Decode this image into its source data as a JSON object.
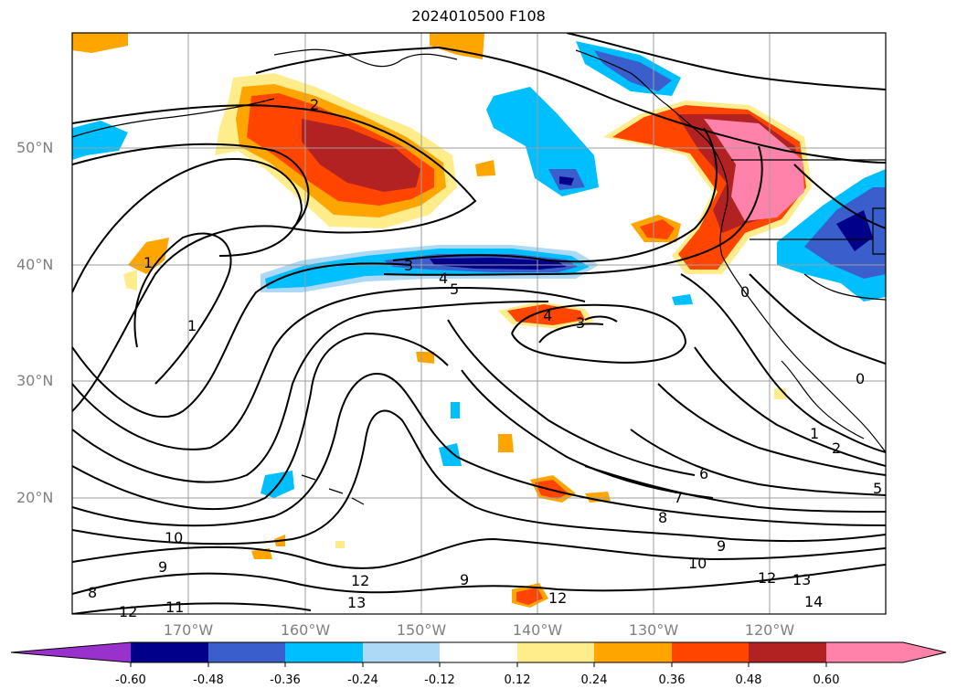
{
  "title": "2024010500 F108",
  "lat_labels": [
    "50°N",
    "40°N",
    "30°N",
    "20°N"
  ],
  "lon_labels": [
    "170°W",
    "160°W",
    "150°W",
    "140°W",
    "130°W",
    "120°W"
  ],
  "contour_labels": [
    "2",
    "3",
    "4",
    "5",
    "4",
    "3",
    "1",
    "1",
    "0",
    "1",
    "2",
    "6",
    "7",
    "8",
    "9",
    "10",
    "10",
    "9",
    "12",
    "9",
    "13",
    "12",
    "13",
    "14",
    "11",
    "12",
    "8",
    "12",
    "5",
    "0"
  ],
  "colorbar": {
    "ticks": [
      "-0.60",
      "-0.48",
      "-0.36",
      "-0.24",
      "-0.12",
      "0.12",
      "0.24",
      "0.36",
      "0.48",
      "0.60"
    ],
    "colors": [
      "#9932cc",
      "#00008b",
      "#3a5fcd",
      "#00bfff",
      "#add8f6",
      "#ffffff",
      "#ffec8b",
      "#ffa500",
      "#ff4500",
      "#b22222",
      "#ff82ab"
    ]
  }
}
